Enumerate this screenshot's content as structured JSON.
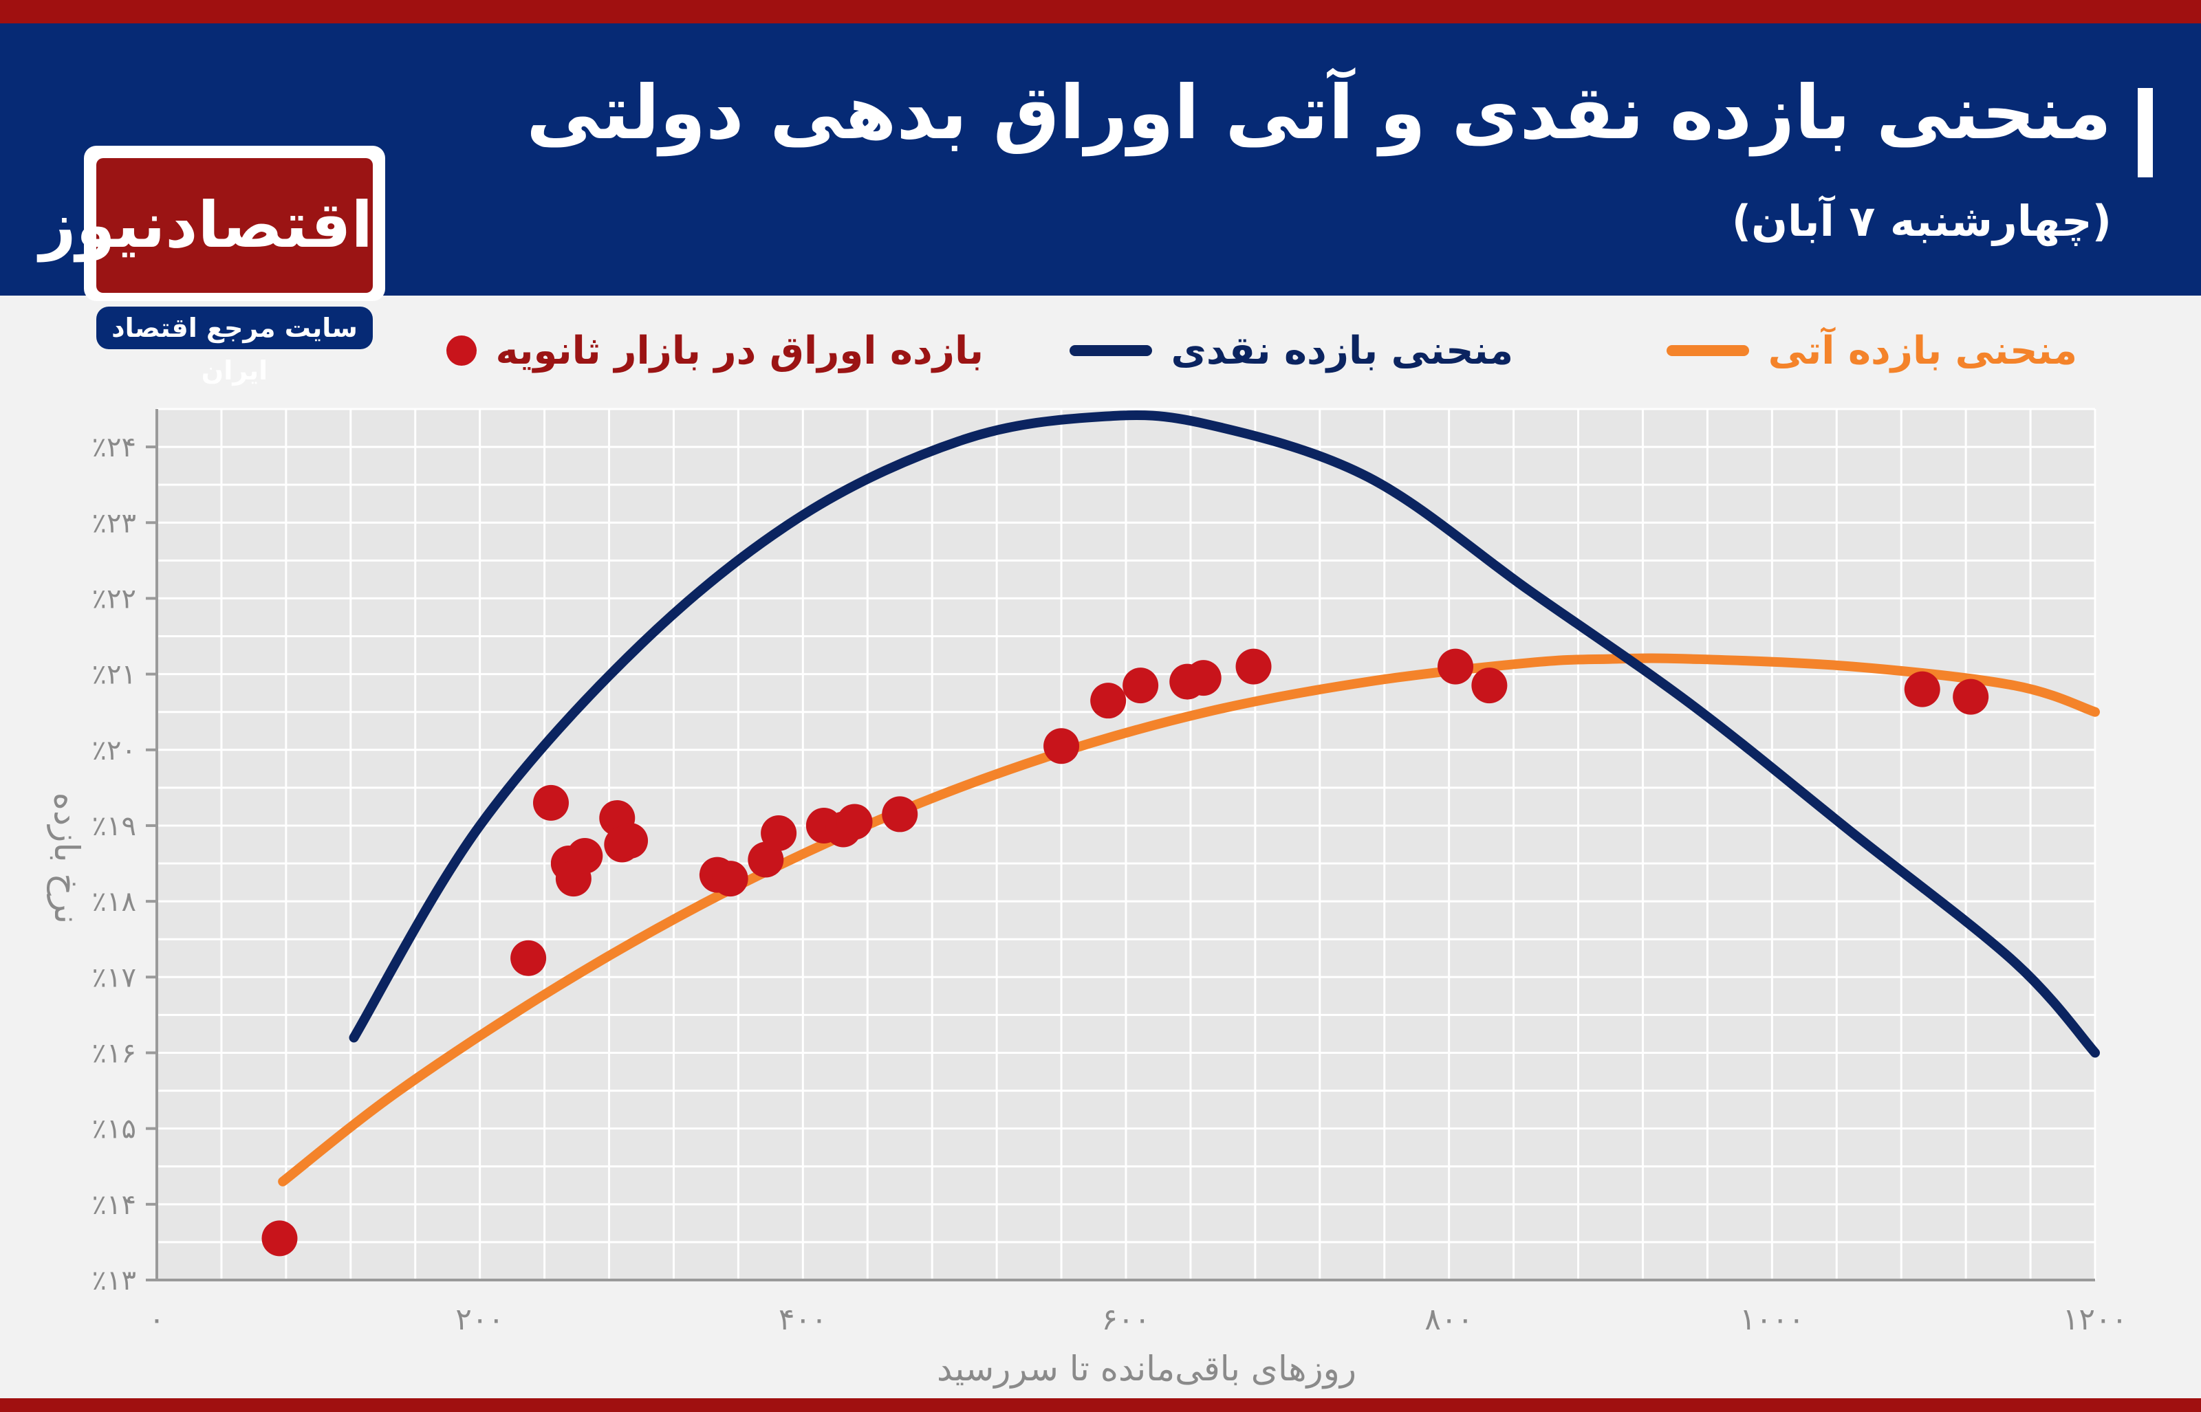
{
  "header": {
    "title": "منحنی بازده نقدی و آتی اوراق بدهی دولتی",
    "subtitle": "(چهارشنبه ۷ آبان)"
  },
  "logo": {
    "name": "اقتصادنیوز",
    "tagline": "سایت مرجع اقتصاد ایران"
  },
  "legend": [
    {
      "label": "منحنی بازده آتی",
      "color": "#f4832a"
    },
    {
      "label": "منحنی بازده نقدی",
      "color": "#0b2460"
    },
    {
      "label": "بازده اوراق در بازار ثانویه",
      "color": "#c8141b"
    }
  ],
  "chart_data": {
    "type": "scatter",
    "xlabel": "روزهای باقی‌مانده تا سررسید",
    "ylabel": "نرخ بازده",
    "xlim": [
      0,
      1200
    ],
    "ylim": [
      13,
      24.5
    ],
    "grid": true,
    "x_ticks": [
      0,
      200,
      400,
      600,
      800,
      1000,
      1200
    ],
    "x_tick_labels": [
      "۰",
      "۲۰۰",
      "۴۰۰",
      "۶۰۰",
      "۸۰۰",
      "۱۰۰۰",
      "۱۲۰۰"
    ],
    "y_ticks": [
      13,
      14,
      15,
      16,
      17,
      18,
      19,
      20,
      21,
      22,
      23,
      24
    ],
    "y_tick_labels": [
      "٪۱۳",
      "٪۱۴",
      "٪۱۵",
      "٪۱۶",
      "٪۱۷",
      "٪۱۸",
      "٪۱۹",
      "٪۲۰",
      "٪۲۱",
      "٪۲۲",
      "٪۲۳",
      "٪۲۴"
    ],
    "series": [
      {
        "name": "منحنی بازده آتی",
        "kind": "line",
        "color": "#f4832a",
        "x": [
          78,
          150,
          250,
          350,
          450,
          550,
          650,
          750,
          850,
          900,
          950,
          1050,
          1150,
          1200
        ],
        "y": [
          14.3,
          15.5,
          16.9,
          18.1,
          19.1,
          19.9,
          20.5,
          20.9,
          21.15,
          21.2,
          21.2,
          21.1,
          20.85,
          20.5
        ]
      },
      {
        "name": "منحنی بازده نقدی",
        "kind": "line",
        "color": "#0b2460",
        "x": [
          122,
          200,
          300,
          400,
          500,
          585,
          650,
          750,
          850,
          950,
          1050,
          1150,
          1200
        ],
        "y": [
          16.2,
          19.0,
          21.4,
          23.1,
          24.1,
          24.4,
          24.3,
          23.6,
          22.1,
          20.6,
          18.9,
          17.2,
          16.0
        ]
      },
      {
        "name": "بازده اوراق در بازار ثانویه",
        "kind": "scatter",
        "color": "#c8141b",
        "x": [
          76,
          230,
          244,
          255,
          258,
          265,
          285,
          288,
          293,
          347,
          355,
          377,
          385,
          413,
          425,
          432,
          460,
          560,
          589,
          609,
          638,
          648,
          679,
          804,
          825,
          1093,
          1123
        ],
        "y": [
          13.55,
          17.25,
          19.3,
          18.5,
          18.3,
          18.6,
          19.1,
          18.75,
          18.8,
          18.35,
          18.3,
          18.55,
          18.9,
          19.0,
          18.95,
          19.05,
          19.15,
          20.05,
          20.65,
          20.85,
          20.9,
          20.95,
          21.1,
          21.1,
          20.85,
          20.8,
          20.7
        ]
      }
    ]
  }
}
